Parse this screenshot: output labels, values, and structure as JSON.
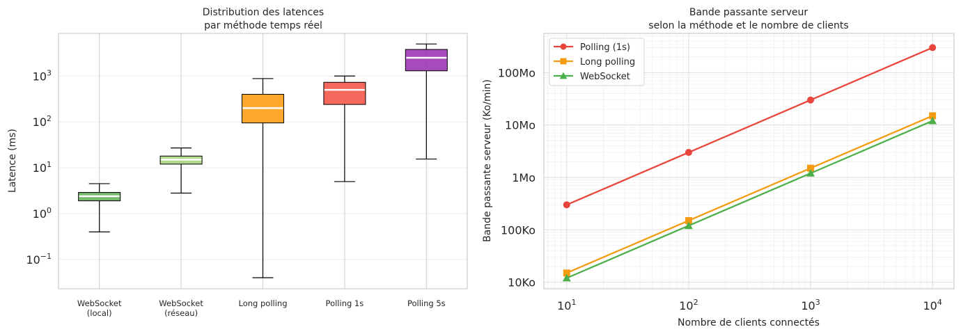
{
  "chart_data": [
    {
      "type": "box",
      "title": [
        "Distribution des latences",
        "par méthode temps réel"
      ],
      "xlabel": "",
      "ylabel": "Latence (ms)",
      "yscale": "log",
      "ylim": [
        0.023,
        8500
      ],
      "grid": true,
      "y_tick_values": [
        0.1,
        1,
        10,
        100,
        1000
      ],
      "y_ticks": [
        {
          "base": "10",
          "exp": "−1"
        },
        {
          "base": "10",
          "exp": "0"
        },
        {
          "base": "10",
          "exp": "1"
        },
        {
          "base": "10",
          "exp": "2"
        },
        {
          "base": "10",
          "exp": "3"
        }
      ],
      "categories": [
        [
          "WebSocket",
          "(local)"
        ],
        [
          "WebSocket",
          "(réseau)"
        ],
        [
          "Long polling"
        ],
        [
          "Polling 1s"
        ],
        [
          "Polling 5s"
        ]
      ],
      "boxes": [
        {
          "whisker_low": 0.4,
          "q1": 1.9,
          "median": 2.4,
          "q3": 2.9,
          "whisker_high": 4.5,
          "color": "#66b35a"
        },
        {
          "whisker_low": 2.8,
          "q1": 12,
          "median": 15,
          "q3": 18,
          "whisker_high": 27,
          "color": "#a8d47e"
        },
        {
          "whisker_low": 0.04,
          "q1": 95,
          "median": 200,
          "q3": 400,
          "whisker_high": 880,
          "color": "#ff9f1a"
        },
        {
          "whisker_low": 5,
          "q1": 240,
          "median": 500,
          "q3": 730,
          "whisker_high": 1000,
          "color": "#f5564a"
        },
        {
          "whisker_low": 15.5,
          "q1": 1300,
          "median": 2500,
          "q3": 3800,
          "whisker_high": 5000,
          "color": "#9c36b5"
        }
      ]
    },
    {
      "type": "line",
      "title": [
        "Bande passante serveur",
        "selon la méthode et le nombre de clients"
      ],
      "xlabel": "Nombre de clients connectés",
      "ylabel": "Bande passante serveur (Ko/min)",
      "xscale": "log",
      "yscale": "log",
      "xlim": [
        6.5,
        15000
      ],
      "ylim": [
        7500,
        560000000
      ],
      "grid": true,
      "legend_position": "top-left",
      "x": [
        10,
        100,
        1000,
        10000
      ],
      "x_tick_values": [
        10,
        100,
        1000,
        10000
      ],
      "x_ticks": [
        {
          "base": "10",
          "exp": "1"
        },
        {
          "base": "10",
          "exp": "2"
        },
        {
          "base": "10",
          "exp": "3"
        },
        {
          "base": "10",
          "exp": "4"
        }
      ],
      "y_tick_values": [
        10000,
        100000,
        1000000,
        10000000,
        100000000
      ],
      "y_ticks": [
        "10Ko",
        "100Ko",
        "1Mo",
        "10Mo",
        "100Mo"
      ],
      "series": [
        {
          "name": "Polling (1s)",
          "values": [
            300000,
            3000000,
            30000000,
            300000000
          ],
          "color": "#e8453c",
          "marker": "circle"
        },
        {
          "name": "Long polling",
          "values": [
            15000,
            150000,
            1500000,
            15000000
          ],
          "color": "#f39c12",
          "marker": "square"
        },
        {
          "name": "WebSocket",
          "values": [
            12000,
            120000,
            1200000,
            12000000
          ],
          "color": "#4daf4a",
          "marker": "triangle"
        }
      ]
    }
  ]
}
